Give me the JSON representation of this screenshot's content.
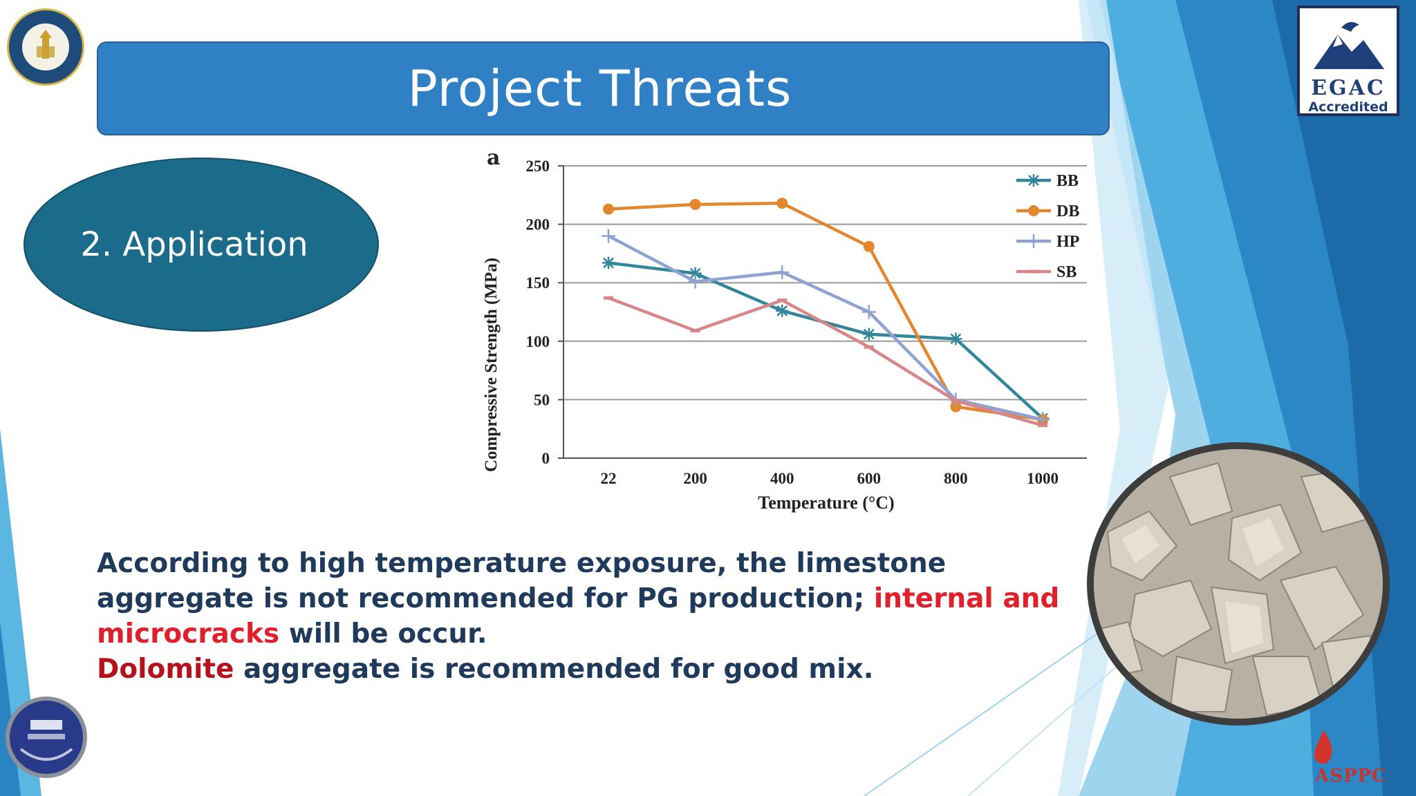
{
  "slide": {
    "title": "Project Threats",
    "section_label": "2. Application",
    "body_line1": "According to high temperature exposure, the limestone aggregate is not recommended for PG production; ",
    "body_highlight1": "internal and microcracks",
    "body_line1_end": " will be occur.",
    "body_highlight2": "Dolomite",
    "body_line2_end": " aggregate is recommended for good mix."
  },
  "logos": {
    "egac_line1": "EGAC",
    "egac_line2": "Accredited",
    "aspc": "ASPPC"
  },
  "chart_data": {
    "type": "line",
    "panel_label": "a",
    "xlabel": "Temperature (°C)",
    "ylabel": "Compressive Strength (MPa)",
    "categories": [
      "22",
      "200",
      "400",
      "600",
      "800",
      "1000"
    ],
    "ylim": [
      0,
      250
    ],
    "yticks": [
      0,
      50,
      100,
      150,
      200,
      250
    ],
    "grid": true,
    "legend": "top-right",
    "series": [
      {
        "name": "BB",
        "color": "#31869b",
        "marker": "star",
        "values": [
          167,
          158,
          126,
          106,
          102,
          34
        ]
      },
      {
        "name": "DB",
        "color": "#e3872d",
        "marker": "circle",
        "values": [
          213,
          217,
          218,
          181,
          44,
          33
        ]
      },
      {
        "name": "HP",
        "color": "#8fa2d4",
        "marker": "plus",
        "values": [
          190,
          151,
          159,
          125,
          50,
          33
        ]
      },
      {
        "name": "SB",
        "color": "#d9868a",
        "marker": "dash",
        "values": [
          137,
          109,
          135,
          95,
          49,
          28
        ]
      }
    ]
  },
  "colors": {
    "title_bar": "#2f80c4",
    "section_oval": "#1a6c8a",
    "body_text": "#1f3a5a",
    "highlight": "#e0202a"
  }
}
